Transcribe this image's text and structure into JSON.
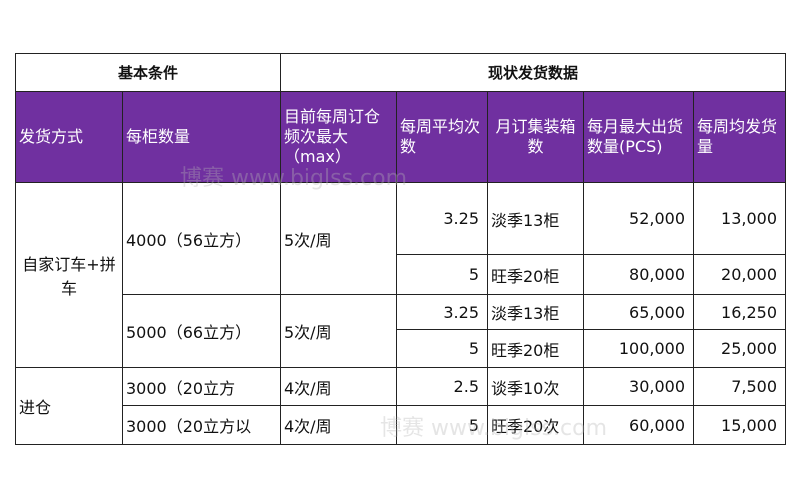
{
  "groups": {
    "basic": "基本条件",
    "current": "现状发货数据"
  },
  "headers": [
    "发货方式",
    "每柜数量",
    "目前每周订仓频次最大（max）",
    "每周平均次数",
    "月订集装箱数",
    "每月最大出货数量(PCS)",
    "每周均发货量"
  ],
  "methods": [
    "自家订车+拼车",
    "进仓"
  ],
  "capacity": [
    "4000（56立方）",
    "5000（66立方）",
    "3000（20立方",
    "3000（20立方以"
  ],
  "frequency": [
    "5次/周",
    "5次/周",
    "4次/周",
    "4次/周"
  ],
  "rows": [
    {
      "avg": "3.25",
      "boxes": "淡季13柜",
      "max_month": "52,000",
      "weekly": "13,000"
    },
    {
      "avg": "5",
      "boxes": "旺季20柜",
      "max_month": "80,000",
      "weekly": "20,000"
    },
    {
      "avg": "3.25",
      "boxes": "淡季13柜",
      "max_month": "65,000",
      "weekly": "16,250"
    },
    {
      "avg": "5",
      "boxes": "旺季20柜",
      "max_month": "100,000",
      "weekly": "25,000"
    },
    {
      "avg": "2.5",
      "boxes": "谈季10次",
      "max_month": "30,000",
      "weekly": "7,500"
    },
    {
      "avg": "5",
      "boxes": "旺季20次",
      "max_month": "60,000",
      "weekly": "15,000"
    }
  ],
  "watermark": "博赛 www.biglss.com",
  "colors": {
    "header_bg": "#7030a0",
    "header_text": "#ffffff"
  }
}
